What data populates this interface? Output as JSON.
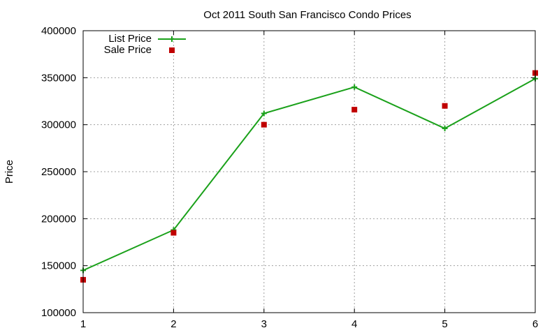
{
  "chart_data": {
    "type": "line",
    "title": "Oct 2011 South San Francisco Condo Prices",
    "xlabel": "",
    "ylabel": "Price",
    "xlim": [
      1,
      6
    ],
    "ylim": [
      100000,
      400000
    ],
    "x_ticks": [
      "1",
      "2",
      "3",
      "4",
      "5",
      "6"
    ],
    "y_ticks": [
      "100000",
      "150000",
      "200000",
      "250000",
      "300000",
      "350000",
      "400000"
    ],
    "grid": true,
    "legend_position": "top-left",
    "series": [
      {
        "name": "List Price",
        "style": "line-with-plus-markers",
        "color": "#1aa11a",
        "x": [
          1,
          2,
          3,
          4,
          5,
          6
        ],
        "y": [
          145000,
          188000,
          312000,
          340000,
          296000,
          349000
        ]
      },
      {
        "name": "Sale Price",
        "style": "square-points",
        "color": "#c00000",
        "x": [
          1,
          2,
          3,
          4,
          5,
          6
        ],
        "y": [
          135000,
          185000,
          300000,
          316000,
          320000,
          355000
        ]
      }
    ]
  }
}
